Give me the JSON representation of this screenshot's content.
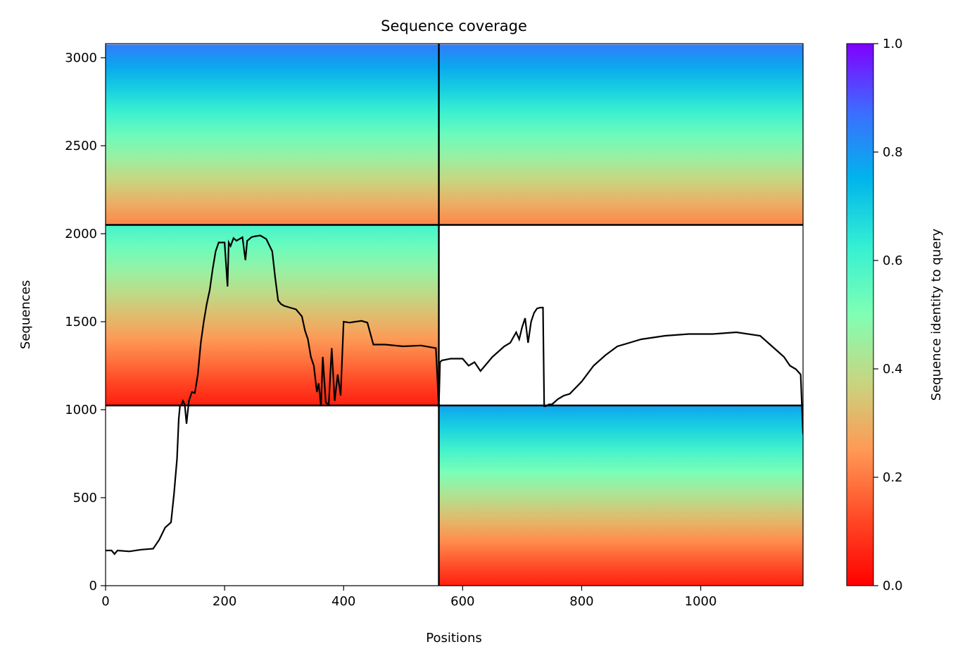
{
  "chart_data": {
    "type": "heatmap",
    "title": "Sequence coverage",
    "xlabel": "Positions",
    "ylabel": "Sequences",
    "xlim": [
      0,
      1172
    ],
    "ylim": [
      0,
      3080
    ],
    "x_ticks": [
      0,
      200,
      400,
      600,
      800,
      1000
    ],
    "y_ticks": [
      0,
      500,
      1000,
      1500,
      2000,
      2500,
      3000
    ],
    "colorbar": {
      "label": "Sequence identity to query",
      "range": [
        0.0,
        1.0
      ],
      "ticks": [
        "0.0",
        "0.2",
        "0.4",
        "0.6",
        "0.8",
        "1.0"
      ],
      "colormap": "rainbow_r"
    },
    "chain_boundaries": {
      "x": 560,
      "y": [
        1024,
        2050
      ]
    },
    "coverage_blocks": [
      {
        "x": [
          0,
          560
        ],
        "y": [
          2050,
          3075
        ],
        "id_top": 0.85,
        "id_bottom": 0.22
      },
      {
        "x": [
          560,
          1172
        ],
        "y": [
          2050,
          3075
        ],
        "id_top": 0.85,
        "id_bottom": 0.22
      },
      {
        "x": [
          0,
          560
        ],
        "y": [
          1024,
          2050
        ],
        "id_top": 0.6,
        "id_bottom": 0.05
      },
      {
        "x": [
          560,
          1172
        ],
        "y": [
          0,
          1024
        ],
        "id_top": 0.78,
        "id_bottom": 0.05
      }
    ],
    "coverage_line": {
      "x": [
        0,
        10,
        15,
        20,
        40,
        60,
        80,
        90,
        100,
        110,
        115,
        120,
        123,
        125,
        128,
        130,
        133,
        136,
        140,
        145,
        150,
        155,
        160,
        165,
        170,
        175,
        180,
        185,
        190,
        200,
        205,
        207,
        210,
        215,
        220,
        230,
        235,
        238,
        240,
        245,
        250,
        260,
        270,
        280,
        285,
        290,
        295,
        300,
        310,
        320,
        330,
        335,
        340,
        345,
        350,
        355,
        358,
        362,
        365,
        370,
        375,
        380,
        385,
        390,
        395,
        400,
        410,
        420,
        430,
        440,
        450,
        470,
        500,
        530,
        555,
        558,
        560,
        562,
        565,
        580,
        600,
        610,
        620,
        630,
        640,
        650,
        660,
        670,
        680,
        690,
        695,
        700,
        705,
        710,
        715,
        720,
        725,
        730,
        735,
        737,
        740,
        745,
        750,
        760,
        770,
        780,
        800,
        820,
        840,
        860,
        880,
        900,
        940,
        980,
        1020,
        1060,
        1100,
        1120,
        1140,
        1150,
        1160,
        1168,
        1172
      ],
      "y": [
        200,
        200,
        180,
        200,
        195,
        205,
        210,
        260,
        330,
        360,
        520,
        720,
        950,
        1020,
        1030,
        1050,
        1030,
        920,
        1050,
        1100,
        1095,
        1200,
        1380,
        1500,
        1600,
        1680,
        1800,
        1900,
        1950,
        1950,
        1700,
        1950,
        1930,
        1975,
        1960,
        1980,
        1850,
        1960,
        1965,
        1980,
        1985,
        1990,
        1970,
        1900,
        1750,
        1620,
        1600,
        1590,
        1580,
        1570,
        1530,
        1450,
        1400,
        1300,
        1250,
        1100,
        1150,
        1020,
        1300,
        1040,
        1030,
        1350,
        1050,
        1200,
        1080,
        1500,
        1495,
        1500,
        1505,
        1495,
        1370,
        1370,
        1360,
        1365,
        1350,
        1150,
        1010,
        1270,
        1280,
        1290,
        1290,
        1250,
        1270,
        1220,
        1260,
        1300,
        1330,
        1360,
        1380,
        1440,
        1400,
        1470,
        1520,
        1380,
        1500,
        1550,
        1575,
        1580,
        1580,
        1020,
        1020,
        1030,
        1030,
        1060,
        1080,
        1090,
        1160,
        1250,
        1310,
        1360,
        1380,
        1400,
        1420,
        1430,
        1430,
        1440,
        1420,
        1360,
        1300,
        1250,
        1230,
        1200,
        860
      ]
    }
  }
}
